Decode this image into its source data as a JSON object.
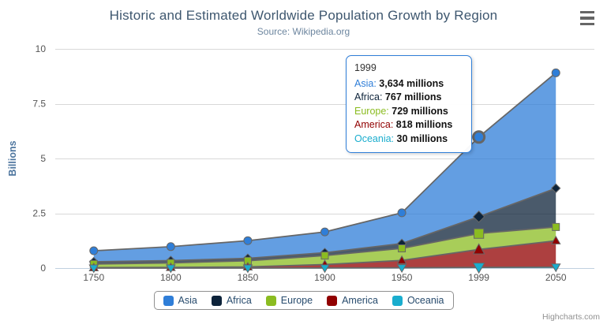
{
  "chart_data": {
    "type": "area",
    "stacking": "normal",
    "title": "Historic and Estimated Worldwide Population Growth by Region",
    "subtitle": "Source: Wikipedia.org",
    "categories": [
      "1750",
      "1800",
      "1850",
      "1900",
      "1950",
      "1999",
      "2050"
    ],
    "unit": "millions",
    "ylabel": "Billions",
    "yticks": [
      0,
      2.5,
      5,
      7.5,
      10
    ],
    "ylim": [
      0,
      10
    ],
    "grid": true,
    "legend_position": "bottom-center",
    "series": [
      {
        "name": "Asia",
        "color": "#2f7ed8",
        "marker": "circle",
        "values": [
          502,
          635,
          809,
          947,
          1402,
          3634,
          5268
        ]
      },
      {
        "name": "Africa",
        "color": "#0d233a",
        "marker": "diamond",
        "values": [
          106,
          107,
          111,
          133,
          221,
          767,
          1766
        ]
      },
      {
        "name": "Europe",
        "color": "#8bbc21",
        "marker": "square",
        "values": [
          163,
          203,
          276,
          408,
          547,
          729,
          628
        ]
      },
      {
        "name": "America",
        "color": "#910000",
        "marker": "triangle",
        "values": [
          18,
          31,
          54,
          156,
          339,
          818,
          1201
        ]
      },
      {
        "name": "Oceania",
        "color": "#1aadce",
        "marker": "triangle-down",
        "values": [
          2,
          2,
          2,
          6,
          13,
          30,
          46
        ]
      }
    ]
  },
  "tooltip": {
    "header": "1999",
    "category_index": 5,
    "hovered_series": "Asia",
    "rows": [
      {
        "name": "Asia",
        "value": "3,634 millions"
      },
      {
        "name": "Africa",
        "value": "767 millions"
      },
      {
        "name": "Europe",
        "value": "729 millions"
      },
      {
        "name": "America",
        "value": "818 millions"
      },
      {
        "name": "Oceania",
        "value": "30 millions"
      }
    ]
  },
  "colors": {
    "title": "#3E576F",
    "subtitle": "#6D869F",
    "axis_title": "#4d759e",
    "axis_labels": "#555555",
    "grid_line": "#d8d8d8",
    "axis_line": "#c0d0e0",
    "series_line": "#666666",
    "legend_border": "#909090",
    "legend_text": "#274b6d",
    "credits_text": "#909090"
  },
  "credits": "Highcharts.com"
}
